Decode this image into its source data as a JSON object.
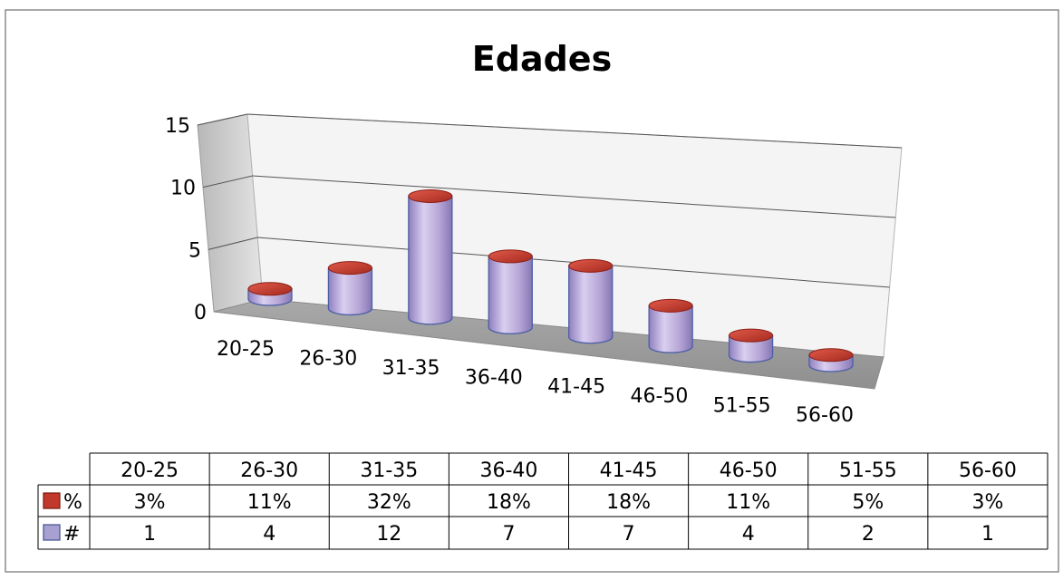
{
  "chart_data": {
    "type": "bar",
    "title": "Edades",
    "categories": [
      "20-25",
      "26-30",
      "31-35",
      "36-40",
      "41-45",
      "46-50",
      "51-55",
      "56-60"
    ],
    "series": [
      {
        "name": "%",
        "values": [
          "3%",
          "11%",
          "32%",
          "18%",
          "18%",
          "11%",
          "5%",
          "3%"
        ]
      },
      {
        "name": "#",
        "values": [
          1,
          4,
          12,
          7,
          7,
          4,
          2,
          1
        ]
      }
    ],
    "y_ticks": [
      "0",
      "5",
      "10",
      "15"
    ],
    "ylim": [
      0,
      15
    ],
    "grid": true,
    "legend": "data-table"
  },
  "colors": {
    "cylinder_body": "#b7a6d6",
    "cylinder_top": "#c0392b",
    "percent_key": "#c0392b",
    "count_key": "#a9a0d2"
  }
}
